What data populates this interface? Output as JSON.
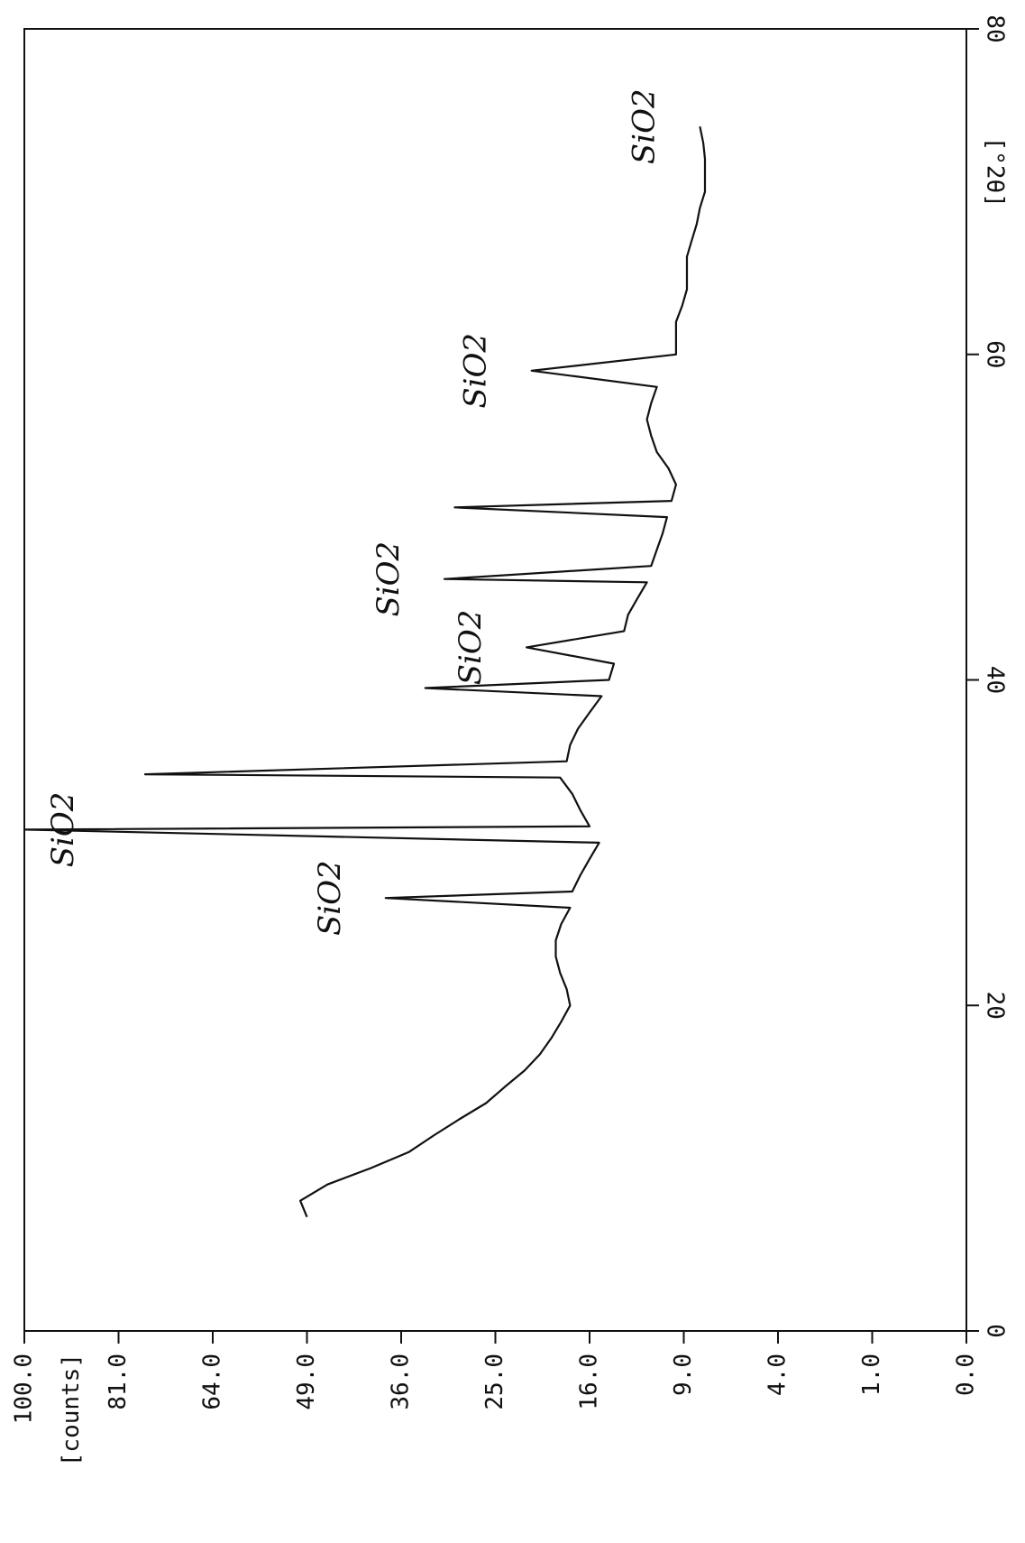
{
  "chart_data": {
    "type": "line",
    "x_label": "[°2θ]",
    "y_label": "[counts]",
    "y_scale": "sqrt",
    "xlim": [
      0,
      80
    ],
    "xticks": [
      0,
      20,
      40,
      60,
      80
    ],
    "ylim": [
      0,
      100
    ],
    "yticks": [
      {
        "value": 0,
        "label": "0.0"
      },
      {
        "value": 1,
        "label": "1.0"
      },
      {
        "value": 4,
        "label": "4.0"
      },
      {
        "value": 9,
        "label": "9.0"
      },
      {
        "value": 16,
        "label": "16.0"
      },
      {
        "value": 25,
        "label": "25.0"
      },
      {
        "value": 36,
        "label": "36.0"
      },
      {
        "value": 49,
        "label": "49.0"
      },
      {
        "value": 64,
        "label": "64.0"
      },
      {
        "value": 81,
        "label": "81.0"
      },
      {
        "value": 100,
        "label": "100.0"
      }
    ],
    "series": [
      {
        "color": "#111111",
        "x": [
          7,
          8,
          9,
          10,
          11,
          12,
          13,
          14,
          15,
          16,
          17,
          18,
          19,
          20,
          21,
          22,
          23,
          24,
          25,
          26,
          26.6,
          27,
          28,
          29,
          30,
          30.8,
          31,
          32,
          33,
          34,
          34.2,
          35,
          36,
          37,
          38,
          39,
          39.5,
          40,
          41,
          42,
          43,
          44,
          45,
          46,
          46.2,
          47,
          48,
          49,
          50,
          50.6,
          51,
          52,
          53,
          54,
          55,
          56,
          57,
          58,
          59,
          60,
          61,
          62,
          63,
          64,
          65,
          66,
          67,
          68,
          69,
          70,
          71,
          72,
          73,
          74
        ],
        "values": [
          49,
          50,
          46,
          40,
          35,
          32,
          29,
          26,
          24,
          22,
          20.5,
          19.4,
          18.5,
          17.7,
          18,
          18.6,
          19,
          19,
          18.5,
          17.7,
          38,
          17.5,
          16.8,
          16,
          15.2,
          100,
          16,
          16.8,
          17.5,
          18.6,
          76,
          18,
          17.7,
          17,
          16,
          15,
          33,
          14.4,
          14,
          21.8,
          13.2,
          12.9,
          12.2,
          11.5,
          30.7,
          11.2,
          10.8,
          10.4,
          10.1,
          29.5,
          9.8,
          9.5,
          10,
          10.8,
          11.2,
          11.5,
          11.2,
          10.8,
          21.3,
          9.5,
          9.5,
          9.5,
          9.1,
          8.8,
          8.8,
          8.8,
          8.5,
          8.2,
          8,
          7.7,
          7.7,
          7.7,
          7.8,
          8
        ]
      }
    ],
    "annotations": [
      {
        "text": "SiO2",
        "x": 30.8
      },
      {
        "text": "SiO2",
        "x": 26.6
      },
      {
        "text": "SiO2",
        "x": 42
      },
      {
        "text": "SiO2",
        "x": 46.2
      },
      {
        "text": "SiO2",
        "x": 59
      },
      {
        "text": "SiO2",
        "x": 74
      }
    ]
  }
}
